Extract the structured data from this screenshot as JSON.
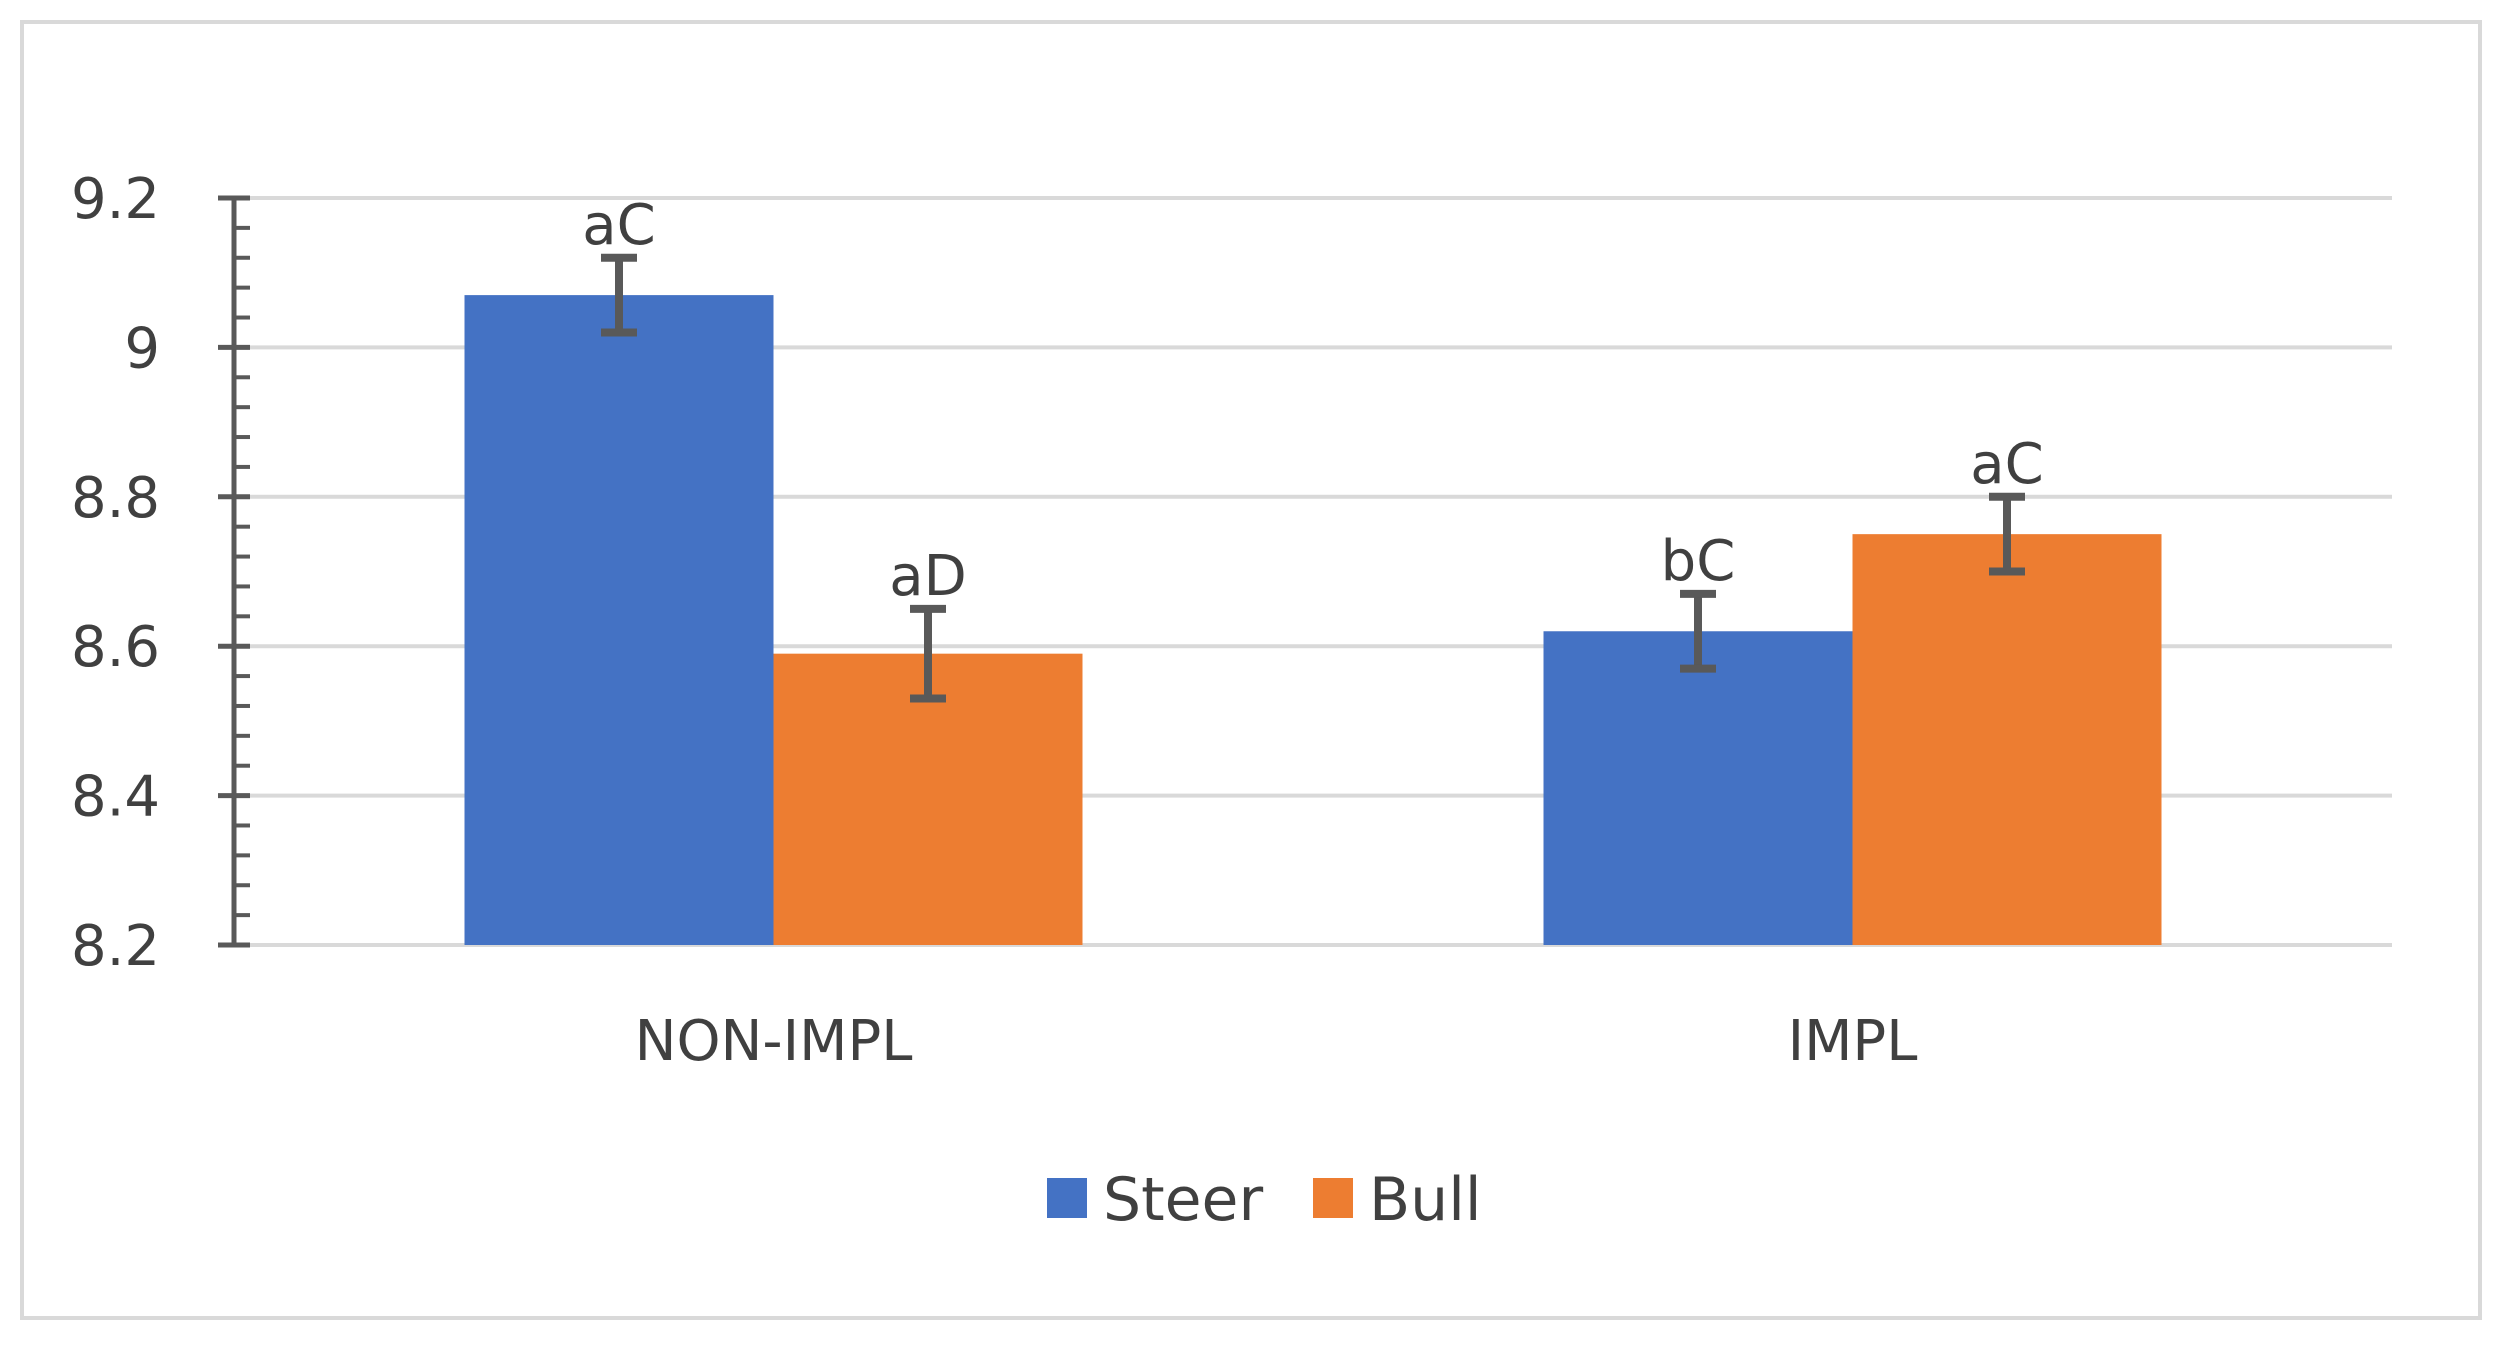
{
  "chart_data": {
    "type": "bar",
    "categories": [
      "NON-IMPL",
      "IMPL"
    ],
    "series": [
      {
        "name": "Steer",
        "color": "#4472C4",
        "values": [
          9.07,
          8.62
        ],
        "errors": [
          0.05,
          0.05
        ],
        "labels": [
          "aC",
          "bC"
        ]
      },
      {
        "name": "Bull",
        "color": "#ED7D31",
        "values": [
          8.59,
          8.75
        ],
        "errors": [
          0.06,
          0.05
        ],
        "labels": [
          "aD",
          "aC"
        ]
      }
    ],
    "ylim": [
      8.2,
      9.2
    ],
    "ytick_labels": [
      "8.2",
      "8.4",
      "8.6",
      "8.8",
      "9",
      "9.2"
    ],
    "title": "",
    "xlabel": "",
    "ylabel": "",
    "grid": true,
    "legend_position": "bottom"
  }
}
